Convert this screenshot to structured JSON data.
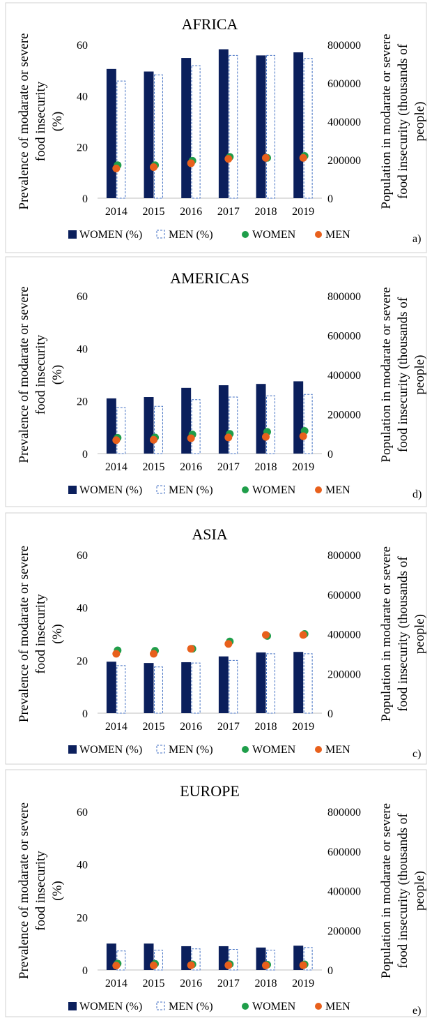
{
  "legend": {
    "women_pct": "WOMEN (%)",
    "men_pct": "MEN (%)",
    "women": "WOMEN",
    "men": "MEN"
  },
  "colors": {
    "women_bar": "#0b1f5c",
    "men_bar_border": "#4472c4",
    "women_dot": "#1f9e4a",
    "men_dot": "#e8601c",
    "frame": "#d0d0d0"
  },
  "chart_data": [
    {
      "type": "bar",
      "title": "AFRICA",
      "panel_letter": "a)",
      "ylabel_left": [
        "Prevalence of modarate or severe",
        "food insecurity",
        "(%)"
      ],
      "ylabel_right": [
        "Population in modarate or severe",
        "food insecurity (thousands of",
        "people)"
      ],
      "categories": [
        "2014",
        "2015",
        "2016",
        "2017",
        "2018",
        "2019"
      ],
      "ylim": [
        0,
        60
      ],
      "yticks": [
        "0",
        "20",
        "40",
        "60"
      ],
      "y2lim": [
        0,
        800000
      ],
      "y2ticks": [
        "0",
        "200000",
        "400000",
        "600000",
        "800000"
      ],
      "series": [
        {
          "name": "WOMEN (%)",
          "kind": "bar",
          "axis": "left",
          "values": [
            50.5,
            49.5,
            54.8,
            58.2,
            55.8,
            57.0
          ]
        },
        {
          "name": "MEN (%)",
          "kind": "bar",
          "axis": "left",
          "values": [
            45.8,
            48.2,
            51.8,
            55.8,
            55.8,
            54.6
          ]
        },
        {
          "name": "WOMEN",
          "kind": "dot",
          "axis": "right",
          "values": [
            172000,
            172000,
            195000,
            215000,
            210000,
            220000
          ]
        },
        {
          "name": "MEN",
          "kind": "dot",
          "axis": "right",
          "values": [
            155000,
            162000,
            182000,
            205000,
            210000,
            210000
          ]
        }
      ]
    },
    {
      "type": "bar",
      "title": "AMERICAS",
      "panel_letter": "d)",
      "ylabel_left": [
        "Prevalence of modarate or severe",
        "food insecurity",
        "(%)"
      ],
      "ylabel_right": [
        "Population in modarate or severe",
        "food insecurity (thousands of",
        "people)"
      ],
      "categories": [
        "2014",
        "2015",
        "2016",
        "2017",
        "2018",
        "2019"
      ],
      "ylim": [
        0,
        60
      ],
      "yticks": [
        "0",
        "20",
        "40",
        "60"
      ],
      "y2lim": [
        0,
        800000
      ],
      "y2ticks": [
        "0",
        "200000",
        "400000",
        "600000",
        "800000"
      ],
      "series": [
        {
          "name": "WOMEN (%)",
          "kind": "bar",
          "axis": "left",
          "values": [
            21.0,
            21.5,
            25.0,
            26.0,
            26.5,
            27.5
          ]
        },
        {
          "name": "MEN (%)",
          "kind": "bar",
          "axis": "left",
          "values": [
            17.5,
            18.0,
            20.5,
            21.5,
            22.0,
            22.5
          ]
        },
        {
          "name": "WOMEN",
          "kind": "dot",
          "axis": "right",
          "values": [
            80000,
            82000,
            97000,
            100000,
            110000,
            115000
          ]
        },
        {
          "name": "MEN",
          "kind": "dot",
          "axis": "right",
          "values": [
            68000,
            70000,
            78000,
            82000,
            85000,
            88000
          ]
        }
      ]
    },
    {
      "type": "bar",
      "title": "ASIA",
      "panel_letter": "c)",
      "ylabel_left": [
        "Prevalence of modarate or severe",
        "food insecurity",
        "(%)"
      ],
      "ylabel_right": [
        "Population in modarate or severe",
        "food insecurity (thousands of",
        "people)"
      ],
      "categories": [
        "2014",
        "2015",
        "2016",
        "2017",
        "2018",
        "2019"
      ],
      "ylim": [
        0,
        60
      ],
      "yticks": [
        "0",
        "20",
        "40",
        "60"
      ],
      "y2lim": [
        0,
        800000
      ],
      "y2ticks": [
        "0",
        "200000",
        "400000",
        "600000",
        "800000"
      ],
      "series": [
        {
          "name": "WOMEN (%)",
          "kind": "bar",
          "axis": "left",
          "values": [
            19.5,
            19.0,
            19.3,
            21.5,
            23.0,
            23.2
          ]
        },
        {
          "name": "MEN (%)",
          "kind": "bar",
          "axis": "left",
          "values": [
            18.0,
            17.5,
            19.0,
            20.0,
            22.5,
            22.5
          ]
        },
        {
          "name": "WOMEN",
          "kind": "dot",
          "axis": "right",
          "values": [
            317000,
            315000,
            325000,
            362000,
            390000,
            400000
          ]
        },
        {
          "name": "MEN",
          "kind": "dot",
          "axis": "right",
          "values": [
            300000,
            300000,
            325000,
            350000,
            395000,
            395000
          ]
        }
      ]
    },
    {
      "type": "bar",
      "title": "EUROPE",
      "panel_letter": "e)",
      "ylabel_left": [
        "Prevalence of modarate or severe",
        "food insecurity",
        "(%)"
      ],
      "ylabel_right": [
        "Population in modarate or severe",
        "food insecurity (thousands of",
        "people)"
      ],
      "categories": [
        "2014",
        "2015",
        "2016",
        "2017",
        "2018",
        "2019"
      ],
      "ylim": [
        0,
        60
      ],
      "yticks": [
        "0",
        "20",
        "40",
        "60"
      ],
      "y2lim": [
        0,
        800000
      ],
      "y2ticks": [
        "0",
        "200000",
        "400000",
        "600000",
        "800000"
      ],
      "series": [
        {
          "name": "WOMEN (%)",
          "kind": "bar",
          "axis": "left",
          "values": [
            10.0,
            10.0,
            9.0,
            9.0,
            8.5,
            9.2
          ]
        },
        {
          "name": "MEN (%)",
          "kind": "bar",
          "axis": "left",
          "values": [
            7.2,
            7.5,
            8.0,
            7.8,
            7.5,
            8.5
          ]
        },
        {
          "name": "WOMEN",
          "kind": "dot",
          "axis": "right",
          "values": [
            32000,
            31000,
            28000,
            29000,
            27000,
            28000
          ]
        },
        {
          "name": "MEN",
          "kind": "dot",
          "axis": "right",
          "values": [
            22000,
            23000,
            24000,
            24000,
            23000,
            24000
          ]
        }
      ]
    }
  ]
}
